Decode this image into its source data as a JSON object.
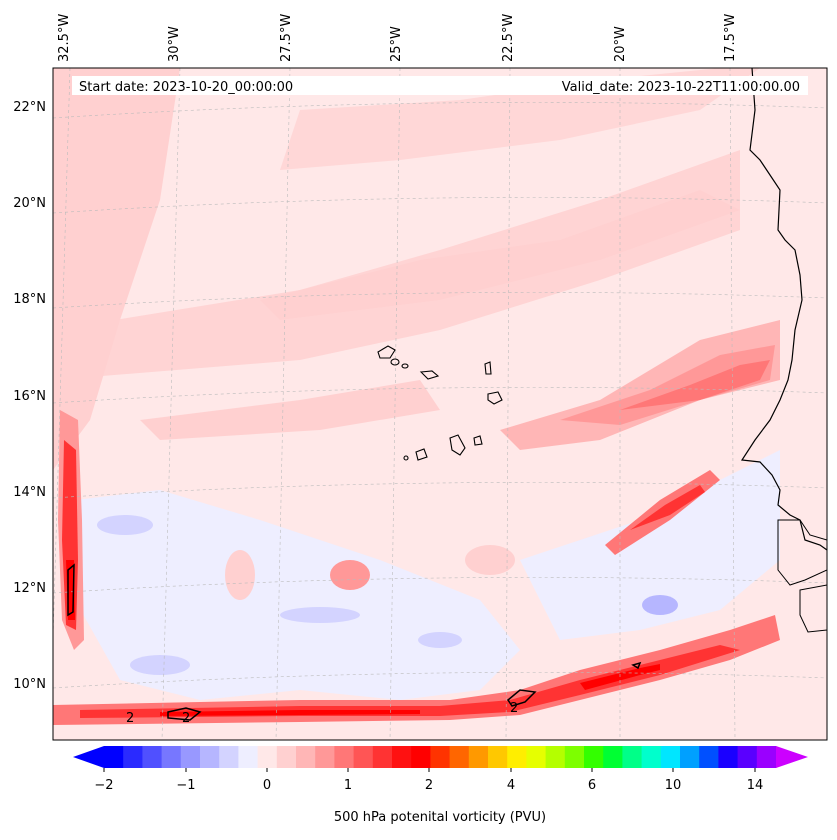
{
  "header": {
    "start_date": "Start date: 2023-10-20_00:00:00",
    "valid_date": "Valid_date: 2023-10-22T11:00:00.00"
  },
  "longitude_labels": [
    "32.5°W",
    "30°W",
    "27.5°W",
    "25°W",
    "22.5°W",
    "20°W",
    "17.5°W"
  ],
  "latitude_labels": [
    "22°N",
    "20°N",
    "18°N",
    "16°N",
    "14°N",
    "12°N",
    "10°N"
  ],
  "contour_labels": [
    "2",
    "2",
    "2"
  ],
  "colorbar": {
    "label": "500 hPa potenital vorticity (PVU)",
    "ticks": [
      "−2",
      "−1",
      "0",
      "1",
      "2",
      "4",
      "6",
      "10",
      "14"
    ],
    "colors": [
      "#0000ff",
      "#2a2aff",
      "#5050ff",
      "#7777ff",
      "#9898ff",
      "#b6b6ff",
      "#d3d3ff",
      "#eeeeff",
      "#ffe8e8",
      "#ffd0d0",
      "#ffb6b6",
      "#ff9898",
      "#ff7777",
      "#ff5555",
      "#ff3333",
      "#ff1111",
      "#ff0000",
      "#ff3300",
      "#ff6600",
      "#ff9900",
      "#ffc800",
      "#ffee00",
      "#e6ff00",
      "#b4ff00",
      "#7dff00",
      "#33ff00",
      "#00ff33",
      "#00ff88",
      "#00ffcc",
      "#00e6ff",
      "#00a0ff",
      "#0050ff",
      "#1a00ff",
      "#5a00ff",
      "#9a00ff"
    ],
    "under_color": "#0000ff",
    "over_color": "#cc00ff"
  }
}
